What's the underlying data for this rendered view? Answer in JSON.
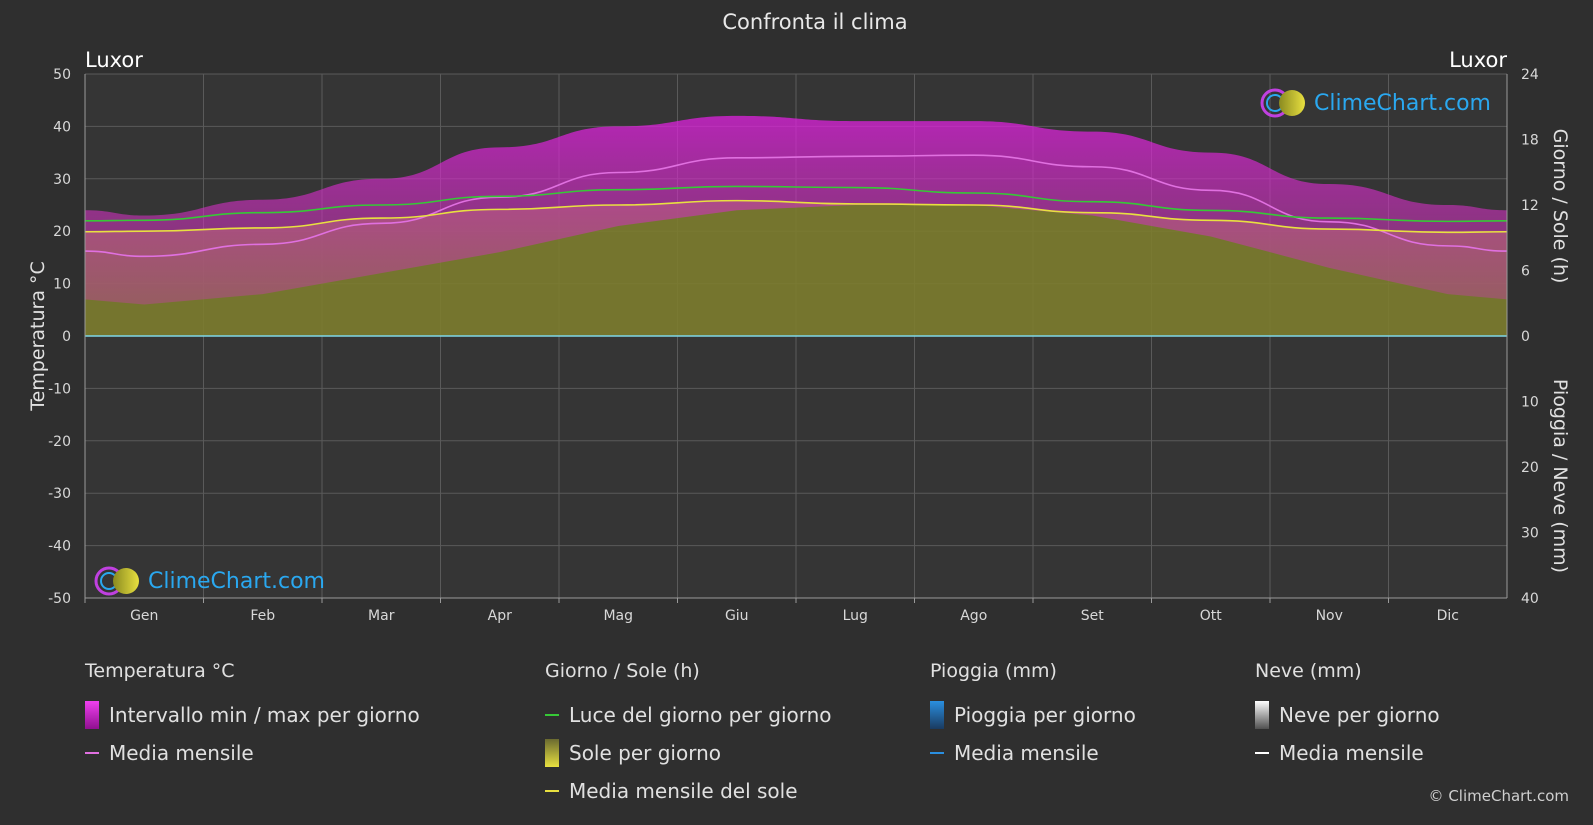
{
  "chart_data": {
    "type": "area",
    "title": "Confronta il clima",
    "location_left": "Luxor",
    "location_right": "Luxor",
    "categories": [
      "Gen",
      "Feb",
      "Mar",
      "Apr",
      "Mag",
      "Giu",
      "Lug",
      "Ago",
      "Set",
      "Ott",
      "Nov",
      "Dic"
    ],
    "left_axis": {
      "label": "Temperatura °C",
      "ticks": [
        50,
        40,
        30,
        20,
        10,
        0,
        -10,
        -20,
        -30,
        -40,
        -50
      ],
      "ylim": [
        -50,
        50
      ]
    },
    "right_axis_top": {
      "label": "Giorno / Sole (h)",
      "ticks": [
        24,
        18,
        12,
        6,
        0
      ],
      "ylim": [
        0,
        24
      ]
    },
    "right_axis_bottom": {
      "label": "Pioggia / Neve (mm)",
      "ticks": [
        0,
        10,
        20,
        30,
        40
      ],
      "ylim": [
        0,
        40
      ]
    },
    "series": [
      {
        "name": "Media mensile",
        "group": "temperature",
        "unit": "°C",
        "values": [
          15.2,
          17.5,
          21.5,
          26.5,
          31.2,
          34.0,
          34.3,
          34.5,
          32.3,
          27.8,
          21.8,
          17.2
        ],
        "color": "#e070e0"
      },
      {
        "name": "Luce del giorno per giorno",
        "group": "daylight",
        "unit": "h",
        "values": [
          10.6,
          11.3,
          12.0,
          12.8,
          13.4,
          13.7,
          13.6,
          13.1,
          12.3,
          11.5,
          10.8,
          10.5
        ],
        "color": "#36c936"
      },
      {
        "name": "Media mensile del sole",
        "group": "sun",
        "unit": "h",
        "values": [
          9.6,
          9.9,
          10.8,
          11.6,
          12.0,
          12.4,
          12.1,
          12.0,
          11.3,
          10.6,
          9.8,
          9.5
        ],
        "color": "#e8e040"
      },
      {
        "name": "Intervallo min / max per giorno",
        "group": "temperature_range",
        "unit": "°C",
        "min": [
          6,
          8,
          12,
          16,
          21,
          24,
          25,
          25,
          23,
          19,
          13,
          8
        ],
        "max": [
          23,
          26,
          30,
          36,
          40,
          42,
          41,
          41,
          39,
          35,
          29,
          25
        ],
        "color": "#d020d0"
      }
    ],
    "grid": true
  },
  "legend": {
    "temperature": {
      "heading": "Temperatura °C",
      "items": [
        "Intervallo min / max per giorno",
        "Media mensile"
      ]
    },
    "sun": {
      "heading": "Giorno / Sole (h)",
      "items": [
        "Luce del giorno per giorno",
        "Sole per giorno",
        "Media mensile del sole"
      ]
    },
    "rain": {
      "heading": "Pioggia (mm)",
      "items": [
        "Pioggia per giorno",
        "Media mensile"
      ]
    },
    "snow": {
      "heading": "Neve (mm)",
      "items": [
        "Neve per giorno",
        "Media mensile"
      ]
    }
  },
  "brand": {
    "logo_text": "ClimeChart.com",
    "copyright": "© ClimeChart.com"
  },
  "colors": {
    "background": "#2f2f2f",
    "grid": "#5a5a5a",
    "temp_range": "#d020d0",
    "sun_fill": "#8a8a30",
    "rain": "#2a8fe0",
    "accent": "#2aa8f0"
  }
}
